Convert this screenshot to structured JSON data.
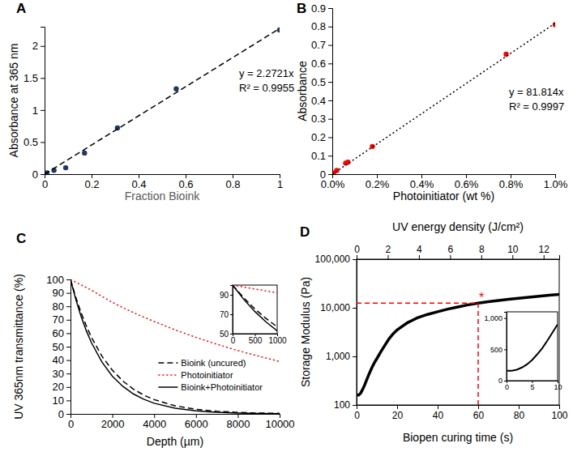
{
  "chart_data": [
    {
      "type": "scatter",
      "panel_label": "A",
      "xlabel": "Fraction Bioink",
      "ylabel": "Absorbance at 365 nm",
      "xlim": [
        0,
        1
      ],
      "ylim": [
        0,
        2.3
      ],
      "xticks": [
        0,
        0.2,
        0.4,
        0.6,
        0.8,
        1
      ],
      "yticks": [
        0,
        0.5,
        1,
        1.5,
        2
      ],
      "annotations": [
        "y = 2.2721x",
        "R² = 0.9955"
      ],
      "series": [
        {
          "type": "scatter",
          "marker": "circle",
          "color": "#1f3864",
          "x": [
            0,
            0.01,
            0.04,
            0.09,
            0.17,
            0.31,
            0.56,
            1
          ],
          "values": [
            0,
            0.02,
            0.06,
            0.1,
            0.33,
            0.72,
            1.33,
            2.25
          ]
        },
        {
          "type": "line",
          "line_style": "dashed",
          "color": "#000000",
          "x": [
            0,
            1
          ],
          "values": [
            0,
            2.2721
          ]
        }
      ]
    },
    {
      "type": "scatter",
      "panel_label": "B",
      "xlabel": "Photoinitiator (wt %)",
      "ylabel": "Absorbance",
      "xlim": [
        0,
        1
      ],
      "ylim": [
        0,
        0.9
      ],
      "xticks": [
        {
          "value": 0,
          "label": "0.0%"
        },
        {
          "value": 0.2,
          "label": "0.2%"
        },
        {
          "value": 0.4,
          "label": "0.4%"
        },
        {
          "value": 0.6,
          "label": "0.6%"
        },
        {
          "value": 0.8,
          "label": "0.8%"
        },
        {
          "value": 1,
          "label": "1.0%"
        }
      ],
      "yticks": [
        0,
        0.1,
        0.2,
        0.3,
        0.4,
        0.5,
        0.6,
        0.7,
        0.8,
        0.9
      ],
      "annotations": [
        "y = 81.814x",
        "R² = 0.9997"
      ],
      "series": [
        {
          "type": "scatter",
          "marker": "circle",
          "color": "#ff0000",
          "x": [
            0,
            0.003,
            0.006,
            0.02,
            0.06,
            0.07,
            0.18,
            0.78,
            1
          ],
          "values": [
            0,
            0.003,
            0.006,
            0.02,
            0.06,
            0.065,
            0.15,
            0.65,
            0.81
          ]
        },
        {
          "type": "line",
          "line_style": "dotted",
          "color": "#000000",
          "x": [
            0,
            1
          ],
          "values": [
            0,
            0.818
          ]
        }
      ]
    },
    {
      "type": "line",
      "panel_label": "C",
      "xlabel": "Depth (µm)",
      "ylabel": "UV 365nm transmittance (%)",
      "xlim": [
        0,
        10000
      ],
      "ylim": [
        0,
        100
      ],
      "xticks": [
        0,
        2000,
        4000,
        6000,
        8000,
        10000
      ],
      "yticks": [
        0,
        10,
        20,
        30,
        40,
        50,
        60,
        70,
        80,
        90,
        100
      ],
      "legend": "lower right",
      "x": [
        0,
        250,
        500,
        750,
        1000,
        1500,
        2000,
        2500,
        3000,
        3500,
        4000,
        5000,
        6000,
        7000,
        8000,
        9000,
        10000
      ],
      "series": [
        {
          "name": "Bioink (uncured)",
          "color": "#000000",
          "line_style": "dashed",
          "values": [
            100,
            86.9,
            75.5,
            65.7,
            57,
            43,
            32.5,
            24.5,
            18.5,
            14,
            10.6,
            6,
            3.4,
            1.9,
            1.1,
            0.6,
            0.4
          ]
        },
        {
          "name": "Photoinitiator",
          "color": "#ff0000",
          "line_style": "dotted",
          "values": [
            100,
            98,
            96,
            94,
            92,
            87.5,
            83,
            79,
            75.4,
            72,
            68.7,
            62.5,
            56.9,
            51.8,
            47.1,
            42.9,
            39
          ]
        },
        {
          "name": "Bioink+Photoinitiator",
          "color": "#000000",
          "line_style": "solid",
          "values": [
            100,
            85.3,
            72.8,
            62.1,
            53,
            38.6,
            28,
            20.5,
            14.9,
            10.9,
            7.9,
            4.2,
            2.2,
            1.2,
            0.6,
            0.3,
            0.2
          ]
        }
      ]
    },
    {
      "type": "line",
      "xlim": [
        0,
        1000
      ],
      "ylim": [
        50,
        100
      ],
      "xticks": [
        0,
        500,
        1000
      ],
      "yticks": [
        50,
        70,
        90
      ],
      "x": [
        0,
        250,
        500,
        750,
        1000
      ],
      "series": [
        {
          "color": "#000000",
          "line_style": "dashed",
          "values": [
            100,
            86.9,
            75.5,
            65.7,
            57
          ]
        },
        {
          "color": "#ff0000",
          "line_style": "dotted",
          "values": [
            100,
            98,
            96,
            94,
            92
          ]
        },
        {
          "color": "#000000",
          "line_style": "solid",
          "values": [
            100,
            85.3,
            72.8,
            62.1,
            53
          ]
        }
      ]
    },
    {
      "type": "line",
      "panel_label": "D",
      "xlabel": "Biopen curing time (s)",
      "ylabel": "Storage Modulus (Pa)",
      "x2label": "UV energy density (J/cm²)",
      "log": "y",
      "xlim": [
        0,
        100
      ],
      "xticks": [
        0,
        20,
        40,
        60,
        80,
        100
      ],
      "x2lim": [
        0,
        13
      ],
      "x2ticks": [
        0,
        2,
        4,
        6,
        8,
        10,
        12
      ],
      "ylim": [
        100,
        100000
      ],
      "yticks": [
        100,
        {
          "value": 1000,
          "label": "1,000"
        },
        {
          "value": 10000,
          "label": "10,000"
        },
        {
          "value": 100000,
          "label": "100,000"
        }
      ],
      "annotations": [
        {
          "x": 60,
          "y": 12500,
          "text": "*"
        }
      ],
      "x": [
        0,
        1,
        2,
        3,
        4,
        5,
        6,
        7,
        8,
        9,
        10,
        12,
        14,
        16,
        18,
        20,
        25,
        30,
        35,
        40,
        45,
        50,
        55,
        60,
        65,
        70,
        75,
        80,
        85,
        90,
        95,
        100
      ],
      "series": [
        {
          "color": "#000000",
          "line_style": "solid",
          "values": [
            160,
            160,
            175,
            210,
            260,
            330,
            420,
            520,
            640,
            770,
            900,
            1250,
            1700,
            2300,
            2900,
            3500,
            4900,
            6200,
            7300,
            8300,
            9400,
            10400,
            11500,
            12500,
            13300,
            14100,
            14900,
            15700,
            16500,
            17300,
            18100,
            18800
          ]
        }
      ]
    },
    {
      "type": "line",
      "xlim": [
        0,
        10
      ],
      "ylim": [
        0,
        1100
      ],
      "xticks": [
        0,
        5,
        10
      ],
      "yticks": [
        0,
        500,
        {
          "value": 1000,
          "label": "1,000"
        }
      ],
      "x": [
        0,
        1,
        2,
        3,
        4,
        5,
        6,
        7,
        8,
        9,
        10
      ],
      "series": [
        {
          "color": "#000000",
          "line_style": "solid",
          "values": [
            160,
            160,
            175,
            210,
            260,
            330,
            420,
            520,
            640,
            770,
            900
          ]
        }
      ]
    }
  ]
}
